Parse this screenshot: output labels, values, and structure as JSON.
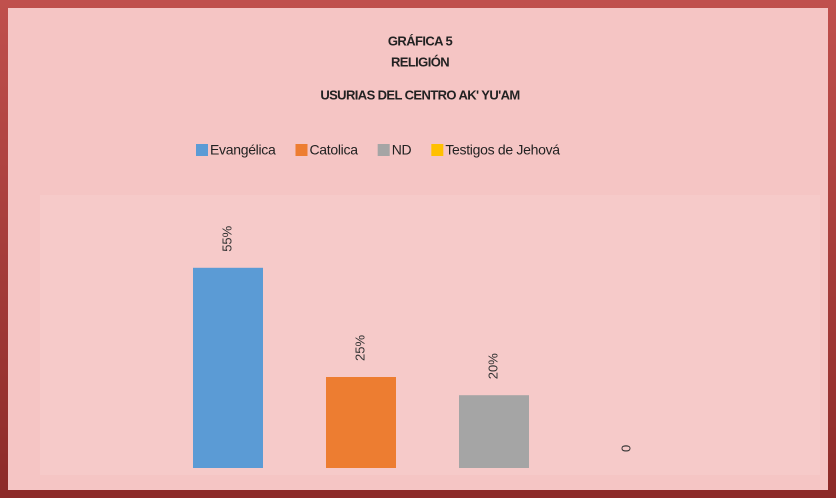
{
  "chart_data": {
    "type": "bar",
    "title": [
      "GRÁFICA 5",
      "RELIGIÓN",
      "USURIAS DEL CENTRO AK' YU'AM"
    ],
    "categories": [
      null
    ],
    "series": [
      {
        "name": "Evangélica",
        "color": "#5b9bd5",
        "values": [
          55
        ],
        "value_labels": [
          "55%"
        ]
      },
      {
        "name": "Catolica",
        "color": "#ed7d31",
        "values": [
          25
        ],
        "value_labels": [
          "25%"
        ]
      },
      {
        "name": "ND",
        "color": "#a5a5a5",
        "values": [
          20
        ],
        "value_labels": [
          "20%"
        ]
      },
      {
        "name": "Testigos de Jehová",
        "color": "#ffc000",
        "values": [
          0
        ],
        "value_labels": [
          "0"
        ]
      }
    ],
    "legend": "top"
  }
}
